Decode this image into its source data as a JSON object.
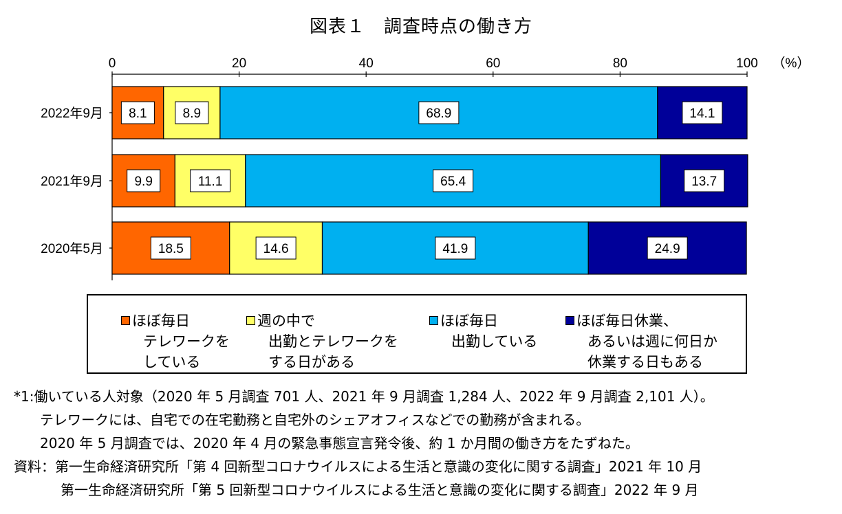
{
  "chart_data": {
    "type": "bar",
    "orientation": "horizontal",
    "stacked": true,
    "title": "図表１　調査時点の働き方",
    "xlim": [
      0,
      100
    ],
    "xticks": [
      0,
      20,
      40,
      60,
      80,
      100
    ],
    "x_unit_label": "（%）",
    "categories": [
      "2022年9月",
      "2021年9月",
      "2020年5月"
    ],
    "series": [
      {
        "name": "ほぼ毎日テレワークをしている",
        "color": "#FF6600",
        "values": [
          8.1,
          9.9,
          18.5
        ]
      },
      {
        "name": "週の中で出勤とテレワークをする日がある",
        "color": "#FFFF66",
        "values": [
          8.9,
          11.1,
          14.6
        ]
      },
      {
        "name": "ほぼ毎日出勤している",
        "color": "#00B0F0",
        "values": [
          68.9,
          65.4,
          41.9
        ]
      },
      {
        "name": "ほぼ毎日休業、あるいは週に何日か休業する日もある",
        "color": "#000099",
        "values": [
          14.1,
          13.7,
          24.9
        ]
      }
    ],
    "value_labels": [
      [
        "8.1",
        "8.9",
        "68.9",
        "14.1"
      ],
      [
        "9.9",
        "11.1",
        "65.4",
        "13.7"
      ],
      [
        "18.5",
        "14.6",
        "41.9",
        "24.9"
      ]
    ]
  },
  "legend": [
    {
      "lines": [
        "ほぼ毎日",
        "テレワークを",
        "している"
      ],
      "color": "#FF6600"
    },
    {
      "lines": [
        "週の中で",
        "出勤とテレワークを",
        "する日がある"
      ],
      "color": "#FFFF66"
    },
    {
      "lines": [
        "ほぼ毎日",
        "出勤している"
      ],
      "color": "#00B0F0"
    },
    {
      "lines": [
        "ほぼ毎日休業、",
        "あるいは週に何日か",
        "休業する日もある"
      ],
      "color": "#000099"
    }
  ],
  "notes": {
    "line1": "*1:働いている人対象（2020 年 5 月調査 701 人、2021 年 9 月調査 1,284 人、2022 年 9 月調査 2,101 人）。",
    "line2": "テレワークには、自宅での在宅勤務と自宅外のシェアオフィスなどでの勤務が含まれる。",
    "line3": "2020 年 5 月調査では、2020 年 4 月の緊急事態宣言発令後、約 1 か月間の働き方をたずねた。",
    "source1": "資料：第一生命経済研究所「第 4 回新型コロナウイルスによる生活と意識の変化に関する調査」2021 年 10 月",
    "source2": "第一生命経済研究所「第 5 回新型コロナウイルスによる生活と意識の変化に関する調査」2022 年 9 月"
  }
}
